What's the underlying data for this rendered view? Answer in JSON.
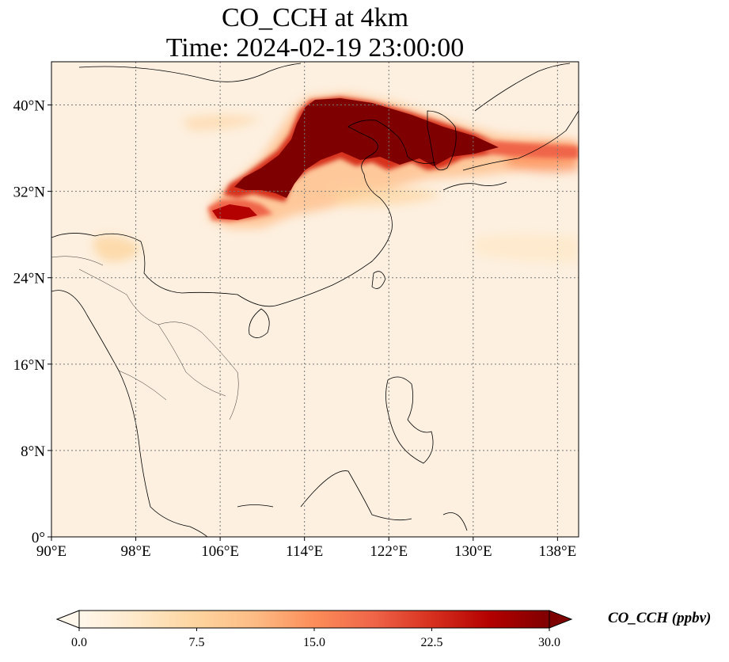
{
  "title": {
    "line1": "CO_CCH at 4km",
    "line2": "Time: 2024-02-19 23:00:00"
  },
  "map": {
    "lon_range": [
      90,
      140
    ],
    "lat_range": [
      0,
      44
    ],
    "gridlines": "dotted",
    "xticks": [
      {
        "value": 90,
        "label": "90°E"
      },
      {
        "value": 98,
        "label": "98°E"
      },
      {
        "value": 106,
        "label": "106°E"
      },
      {
        "value": 114,
        "label": "114°E"
      },
      {
        "value": 122,
        "label": "122°E"
      },
      {
        "value": 130,
        "label": "130°E"
      },
      {
        "value": 138,
        "label": "138°E"
      }
    ],
    "yticks": [
      {
        "value": 0,
        "label": "0°"
      },
      {
        "value": 8,
        "label": "8°N"
      },
      {
        "value": 16,
        "label": "16°N"
      },
      {
        "value": 24,
        "label": "24°N"
      },
      {
        "value": 32,
        "label": "32°N"
      },
      {
        "value": 40,
        "label": "40°N"
      }
    ],
    "background_color": "#fdf0e0"
  },
  "colorbar": {
    "label": "CO_CCH (ppbv)",
    "colormap": "OrRd",
    "range": [
      0,
      30
    ],
    "extend": "both",
    "ticks": [
      {
        "value": 0,
        "label": "0.0"
      },
      {
        "value": 7.5,
        "label": "7.5"
      },
      {
        "value": 15,
        "label": "15.0"
      },
      {
        "value": 22.5,
        "label": "22.5"
      },
      {
        "value": 30,
        "label": "30.0"
      }
    ],
    "colors": [
      "#fff7ec",
      "#fee8c8",
      "#fdd49e",
      "#fdbb84",
      "#fc8d59",
      "#ef6548",
      "#d7301f",
      "#b30000",
      "#7f0000"
    ]
  }
}
